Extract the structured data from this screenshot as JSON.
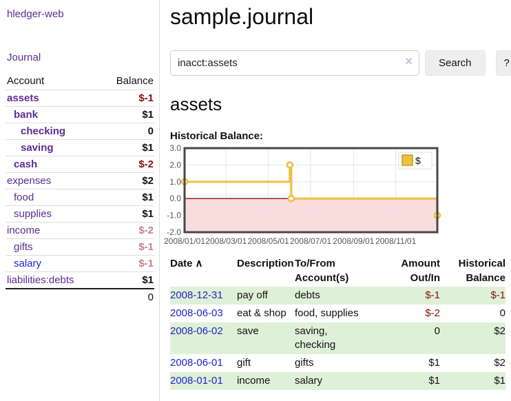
{
  "sidebar": {
    "app_title": "hledger-web",
    "nav_journal": "Journal",
    "accounts_header": {
      "account": "Account",
      "balance": "Balance"
    },
    "accounts": [
      {
        "name": "assets",
        "indent": 0,
        "emph": true,
        "balance": "$-1",
        "neg": "strong"
      },
      {
        "name": "bank",
        "indent": 1,
        "emph": true,
        "balance": "$1"
      },
      {
        "name": "checking",
        "indent": 2,
        "emph": true,
        "balance": "0"
      },
      {
        "name": "saving",
        "indent": 2,
        "emph": true,
        "balance": "$1"
      },
      {
        "name": "cash",
        "indent": 1,
        "emph": true,
        "balance": "$-2",
        "neg": "strong"
      },
      {
        "name": "expenses",
        "indent": 0,
        "emph": false,
        "balance": "$2"
      },
      {
        "name": "food",
        "indent": 1,
        "emph": false,
        "balance": "$1"
      },
      {
        "name": "supplies",
        "indent": 1,
        "emph": false,
        "balance": "$1"
      },
      {
        "name": "income",
        "indent": 0,
        "emph": false,
        "balance": "$-2",
        "neg": "faded"
      },
      {
        "name": "gifts",
        "indent": 1,
        "emph": false,
        "balance": "$-1",
        "neg": "faded"
      },
      {
        "name": "salary",
        "indent": 1,
        "emph": false,
        "balance": "$-1",
        "neg": "faded",
        "link_color": "blue"
      },
      {
        "name": "liabilities:debts",
        "indent": 0,
        "emph": false,
        "balance": "$1"
      }
    ],
    "total": "0"
  },
  "header": {
    "title": "sample.journal",
    "search": {
      "value": "inacct:assets",
      "clear_icon": "✕",
      "button_label": "Search",
      "help_label": "?"
    }
  },
  "main": {
    "account_heading": "assets",
    "chart_label": "Historical Balance:"
  },
  "chart_data": {
    "type": "line",
    "title": "Historical Balance:",
    "series": [
      {
        "name": "$",
        "color": "#edc240",
        "step": true,
        "x": [
          "2008-01-01",
          "2008-06-01",
          "2008-06-03",
          "2008-12-31"
        ],
        "values": [
          1,
          2,
          0,
          -1
        ]
      }
    ],
    "ylim": [
      -2,
      3
    ],
    "yticks": [
      3,
      2,
      1,
      0,
      -1,
      -2
    ],
    "ytick_labels": [
      "3.0",
      "2.0",
      "1.0",
      "0.0",
      "-1.0",
      "-2.0"
    ],
    "x_start": "2008-01-01",
    "x_end": "2008-12-31",
    "xticks": [
      "2008-01-01",
      "2008-03-01",
      "2008-05-01",
      "2008-07-01",
      "2008-09-01",
      "2008-11-01"
    ],
    "xtick_labels": [
      "2008/01/01",
      "2008/03/01",
      "2008/05/01",
      "2008/07/01",
      "2008/09/01",
      "2008/11/01"
    ],
    "grid": true,
    "legend_position": "top-right",
    "legend_label": "$",
    "colors": {
      "line": "#edc240",
      "negative_region": "#f9dcdc",
      "zero_line": "#8b1010",
      "border": "#474747",
      "gridline": "#e6e6e6",
      "tick_text": "#555555"
    }
  },
  "table": {
    "columns": [
      {
        "label": "Date",
        "sorted": "asc"
      },
      {
        "label": "Description"
      },
      {
        "label": "To/From\nAccount(s)"
      },
      {
        "label": "Amount\nOut/In",
        "align": "right"
      },
      {
        "label": "Historical\nBalance",
        "align": "right"
      }
    ],
    "sort_icon": "∧",
    "rows": [
      {
        "date": "2008-12-31",
        "description": "pay off",
        "accounts": "debts",
        "amount": "$-1",
        "balance": "$-1"
      },
      {
        "date": "2008-06-03",
        "description": "eat & shop",
        "accounts": "food, supplies",
        "amount": "$-2",
        "balance": "0"
      },
      {
        "date": "2008-06-02",
        "description": "save",
        "accounts": "saving, checking",
        "amount": "0",
        "balance": "$2"
      },
      {
        "date": "2008-06-01",
        "description": "gift",
        "accounts": "gifts",
        "amount": "$1",
        "balance": "$2"
      },
      {
        "date": "2008-01-01",
        "description": "income",
        "accounts": "salary",
        "amount": "$1",
        "balance": "$1"
      }
    ]
  }
}
